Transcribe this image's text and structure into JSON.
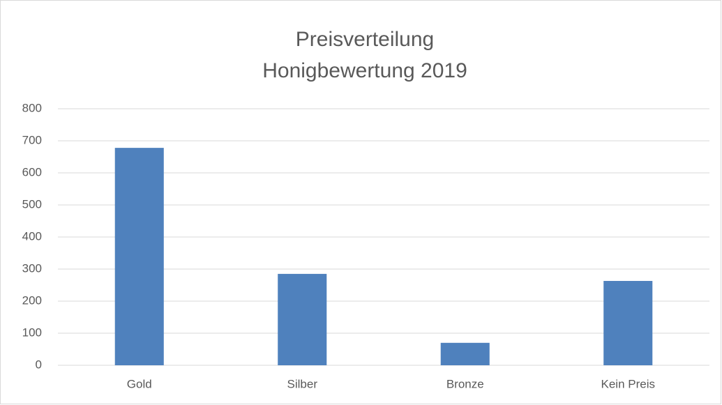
{
  "chart_data": {
    "type": "bar",
    "title": "Preisverteilung",
    "subtitle": "Honigbewertung 2019",
    "categories": [
      "Gold",
      "Silber",
      "Bronze",
      "Kein Preis"
    ],
    "values": [
      678,
      285,
      70,
      263
    ],
    "color": "#4f81bd",
    "ylim": [
      0,
      800
    ],
    "yticks": [
      0,
      100,
      200,
      300,
      400,
      500,
      600,
      700,
      800
    ],
    "grid": true
  }
}
